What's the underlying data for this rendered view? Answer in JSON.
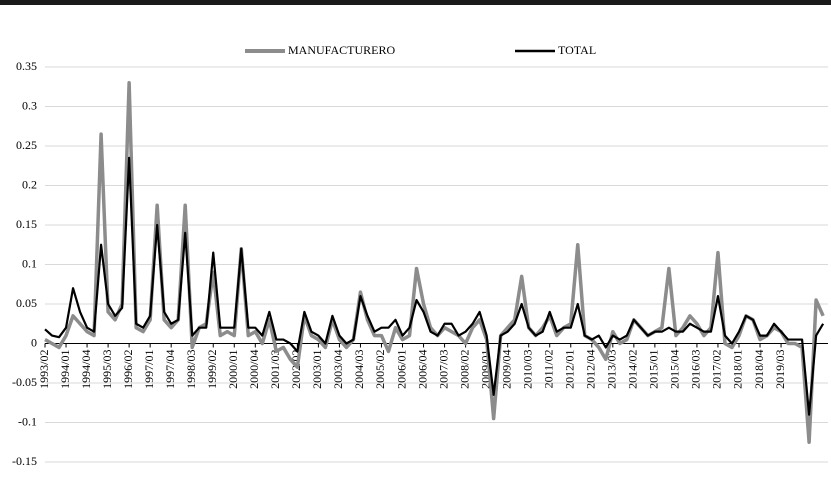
{
  "chart_data": {
    "type": "line",
    "categories": [
      "1993/02",
      null,
      null,
      "1994/01",
      null,
      null,
      "1994/04",
      null,
      null,
      "1995/03",
      null,
      null,
      "1996/02",
      null,
      null,
      "1997/01",
      null,
      null,
      "1997/04",
      null,
      null,
      "1998/03",
      null,
      null,
      "1999/02",
      null,
      null,
      "2000/01",
      null,
      null,
      "2000/04",
      null,
      null,
      "2001/03",
      null,
      null,
      "2002/02",
      null,
      null,
      "2003/01",
      null,
      null,
      "2003/04",
      null,
      null,
      "2004/03",
      null,
      null,
      "2005/02",
      null,
      null,
      "2006/01",
      null,
      null,
      "2006/04",
      null,
      null,
      "2007/03",
      null,
      null,
      "2008/02",
      null,
      null,
      "2009/01",
      null,
      null,
      "2009/04",
      null,
      null,
      "2010/03",
      null,
      null,
      "2011/02",
      null,
      null,
      "2012/01",
      null,
      null,
      "2012/04",
      null,
      null,
      "2013/03",
      null,
      null,
      "2014/02",
      null,
      null,
      "2015/01",
      null,
      null,
      "2015/04",
      null,
      null,
      "2016/03",
      null,
      null,
      "2017/02",
      null,
      null,
      "2018/01",
      null,
      null,
      "2018/04",
      null,
      null,
      "2019/03",
      null,
      null,
      null,
      null,
      null,
      null
    ],
    "series": [
      {
        "name": "MANUFACTURERO",
        "color": "#8c8c8c",
        "values": [
          0.005,
          0.0,
          -0.005,
          0.01,
          0.035,
          0.025,
          0.015,
          0.01,
          0.265,
          0.04,
          0.03,
          0.05,
          0.33,
          0.02,
          0.015,
          0.03,
          0.175,
          0.03,
          0.02,
          0.03,
          0.175,
          -0.005,
          0.02,
          0.025,
          0.09,
          0.01,
          0.015,
          0.01,
          0.12,
          0.01,
          0.015,
          0.0,
          0.03,
          -0.01,
          -0.005,
          -0.02,
          -0.03,
          0.035,
          0.01,
          0.005,
          -0.005,
          0.03,
          0.005,
          -0.005,
          0.005,
          0.065,
          0.03,
          0.01,
          0.01,
          -0.01,
          0.02,
          0.005,
          0.01,
          0.095,
          0.05,
          0.02,
          0.01,
          0.02,
          0.015,
          0.01,
          0.0,
          0.02,
          0.03,
          0.005,
          -0.095,
          0.01,
          0.02,
          0.03,
          0.085,
          0.02,
          0.01,
          0.02,
          0.035,
          0.01,
          0.02,
          0.025,
          0.125,
          0.01,
          0.005,
          -0.005,
          -0.02,
          0.015,
          0.0,
          0.005,
          0.03,
          0.02,
          0.01,
          0.015,
          0.02,
          0.095,
          0.01,
          0.02,
          0.035,
          0.025,
          0.01,
          0.02,
          0.115,
          0.0,
          -0.005,
          0.01,
          0.035,
          0.03,
          0.005,
          0.01,
          0.02,
          0.015,
          0.0,
          0.0,
          -0.005,
          -0.125,
          0.055,
          0.035
        ]
      },
      {
        "name": "TOTAL",
        "color": "#000000",
        "values": [
          0.018,
          0.01,
          0.008,
          0.02,
          0.07,
          0.04,
          0.02,
          0.015,
          0.125,
          0.05,
          0.035,
          0.045,
          0.235,
          0.025,
          0.02,
          0.035,
          0.15,
          0.04,
          0.025,
          0.03,
          0.14,
          0.01,
          0.02,
          0.02,
          0.115,
          0.02,
          0.02,
          0.02,
          0.12,
          0.02,
          0.02,
          0.01,
          0.04,
          0.005,
          0.005,
          0.0,
          -0.01,
          0.04,
          0.015,
          0.01,
          0.0,
          0.035,
          0.01,
          0.0,
          0.005,
          0.06,
          0.035,
          0.015,
          0.02,
          0.02,
          0.03,
          0.01,
          0.02,
          0.055,
          0.04,
          0.015,
          0.01,
          0.025,
          0.025,
          0.01,
          0.015,
          0.025,
          0.04,
          0.01,
          -0.065,
          0.01,
          0.015,
          0.025,
          0.05,
          0.02,
          0.01,
          0.015,
          0.04,
          0.015,
          0.02,
          0.02,
          0.05,
          0.01,
          0.005,
          0.01,
          -0.005,
          0.01,
          0.005,
          0.01,
          0.03,
          0.02,
          0.01,
          0.015,
          0.015,
          0.02,
          0.015,
          0.015,
          0.025,
          0.02,
          0.015,
          0.015,
          0.06,
          0.01,
          0.0,
          0.015,
          0.035,
          0.03,
          0.01,
          0.01,
          0.025,
          0.015,
          0.005,
          0.005,
          0.005,
          -0.09,
          0.01,
          0.025
        ]
      }
    ],
    "ylim": [
      -0.15,
      0.35
    ],
    "yticks": [
      0.35,
      0.3,
      0.25,
      0.2,
      0.15,
      0.1,
      0.05,
      0,
      -0.05,
      -0.1,
      -0.15
    ],
    "grid": true,
    "legend": "top"
  }
}
